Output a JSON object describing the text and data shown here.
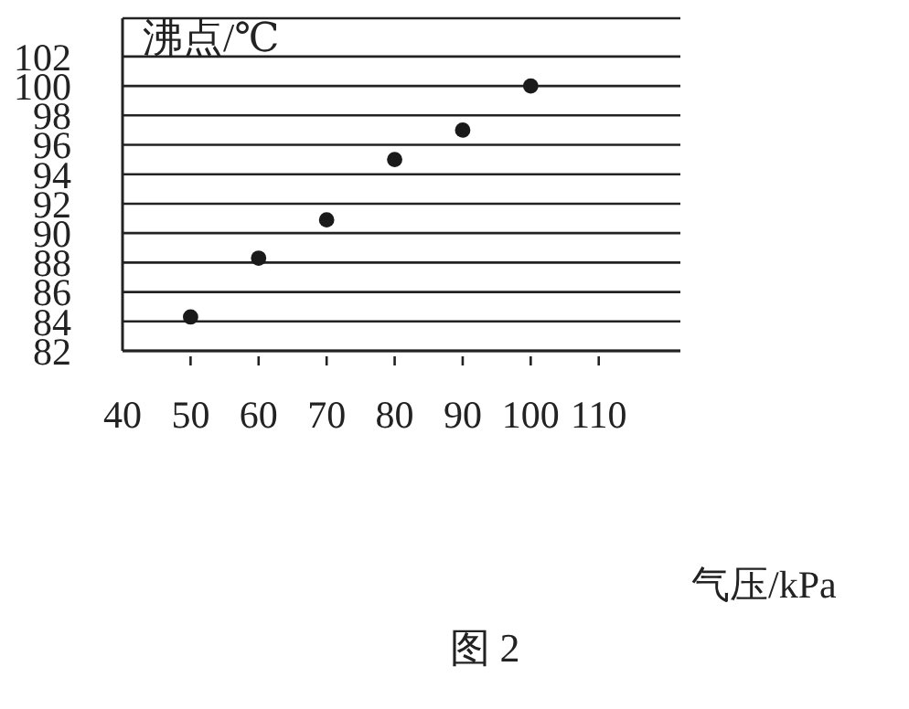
{
  "chart_data": {
    "type": "scatter",
    "ylabel": "沸点/℃",
    "xlabel": "气压/kPa",
    "annotations": [
      "图 2"
    ],
    "x": [
      50,
      60,
      70,
      80,
      90,
      100
    ],
    "values": [
      84.3,
      88.3,
      90.9,
      95.0,
      97.0,
      100.0
    ],
    "color": "#1a1a1a",
    "marker": "circle",
    "grid": "y",
    "xlim": [
      40,
      122
    ],
    "xticks": [
      40,
      50,
      60,
      70,
      80,
      90,
      100,
      110
    ],
    "ylim": [
      82,
      104.6
    ],
    "yticks": [
      82,
      84,
      86,
      88,
      90,
      92,
      94,
      96,
      98,
      100,
      102
    ]
  }
}
